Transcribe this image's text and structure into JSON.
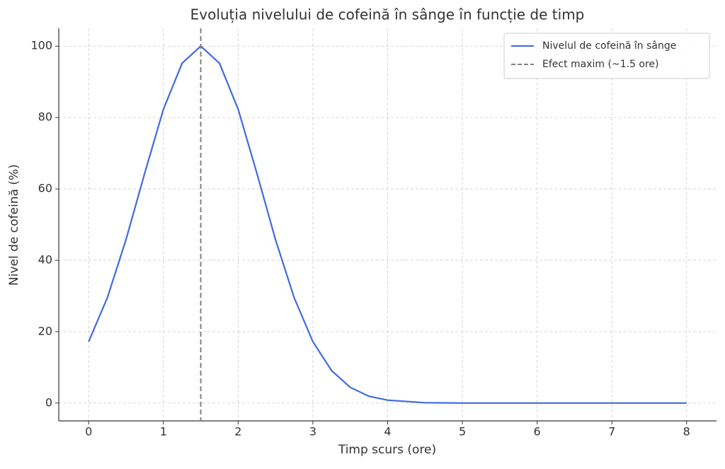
{
  "chart_data": {
    "type": "line",
    "title": "Evoluția nivelului de cofeină în sânge în funcție de timp",
    "x_label": "Timp scurs (ore)",
    "y_label": "Nivel de cofeină (%)",
    "x": [
      0,
      0.25,
      0.5,
      0.75,
      1,
      1.25,
      1.5,
      1.75,
      2,
      2.25,
      2.5,
      2.75,
      3,
      3.25,
      3.5,
      3.75,
      4,
      4.5,
      5,
      6,
      7,
      8
    ],
    "series": [
      {
        "name": "Nivelul de cofeină în sânge",
        "color": "#4169e1",
        "values": [
          17.2,
          29.5,
          45.8,
          64.4,
          82.3,
          95.2,
          100,
          95.2,
          82.3,
          64.4,
          45.8,
          29.5,
          17.2,
          9.1,
          4.4,
          1.9,
          0.8,
          0.1,
          0,
          0,
          0,
          0
        ]
      }
    ],
    "vline": {
      "x": 1.5,
      "name": "Efect maxim (~1.5 ore)",
      "color": "#808080"
    },
    "xlim": [
      -0.4,
      8.4
    ],
    "xticks": [
      0,
      1,
      2,
      3,
      4,
      5,
      6,
      7,
      8
    ],
    "ylim": [
      -5,
      105
    ],
    "yticks": [
      0,
      20,
      40,
      60,
      80,
      100
    ],
    "grid": true,
    "legend": "upper right"
  }
}
